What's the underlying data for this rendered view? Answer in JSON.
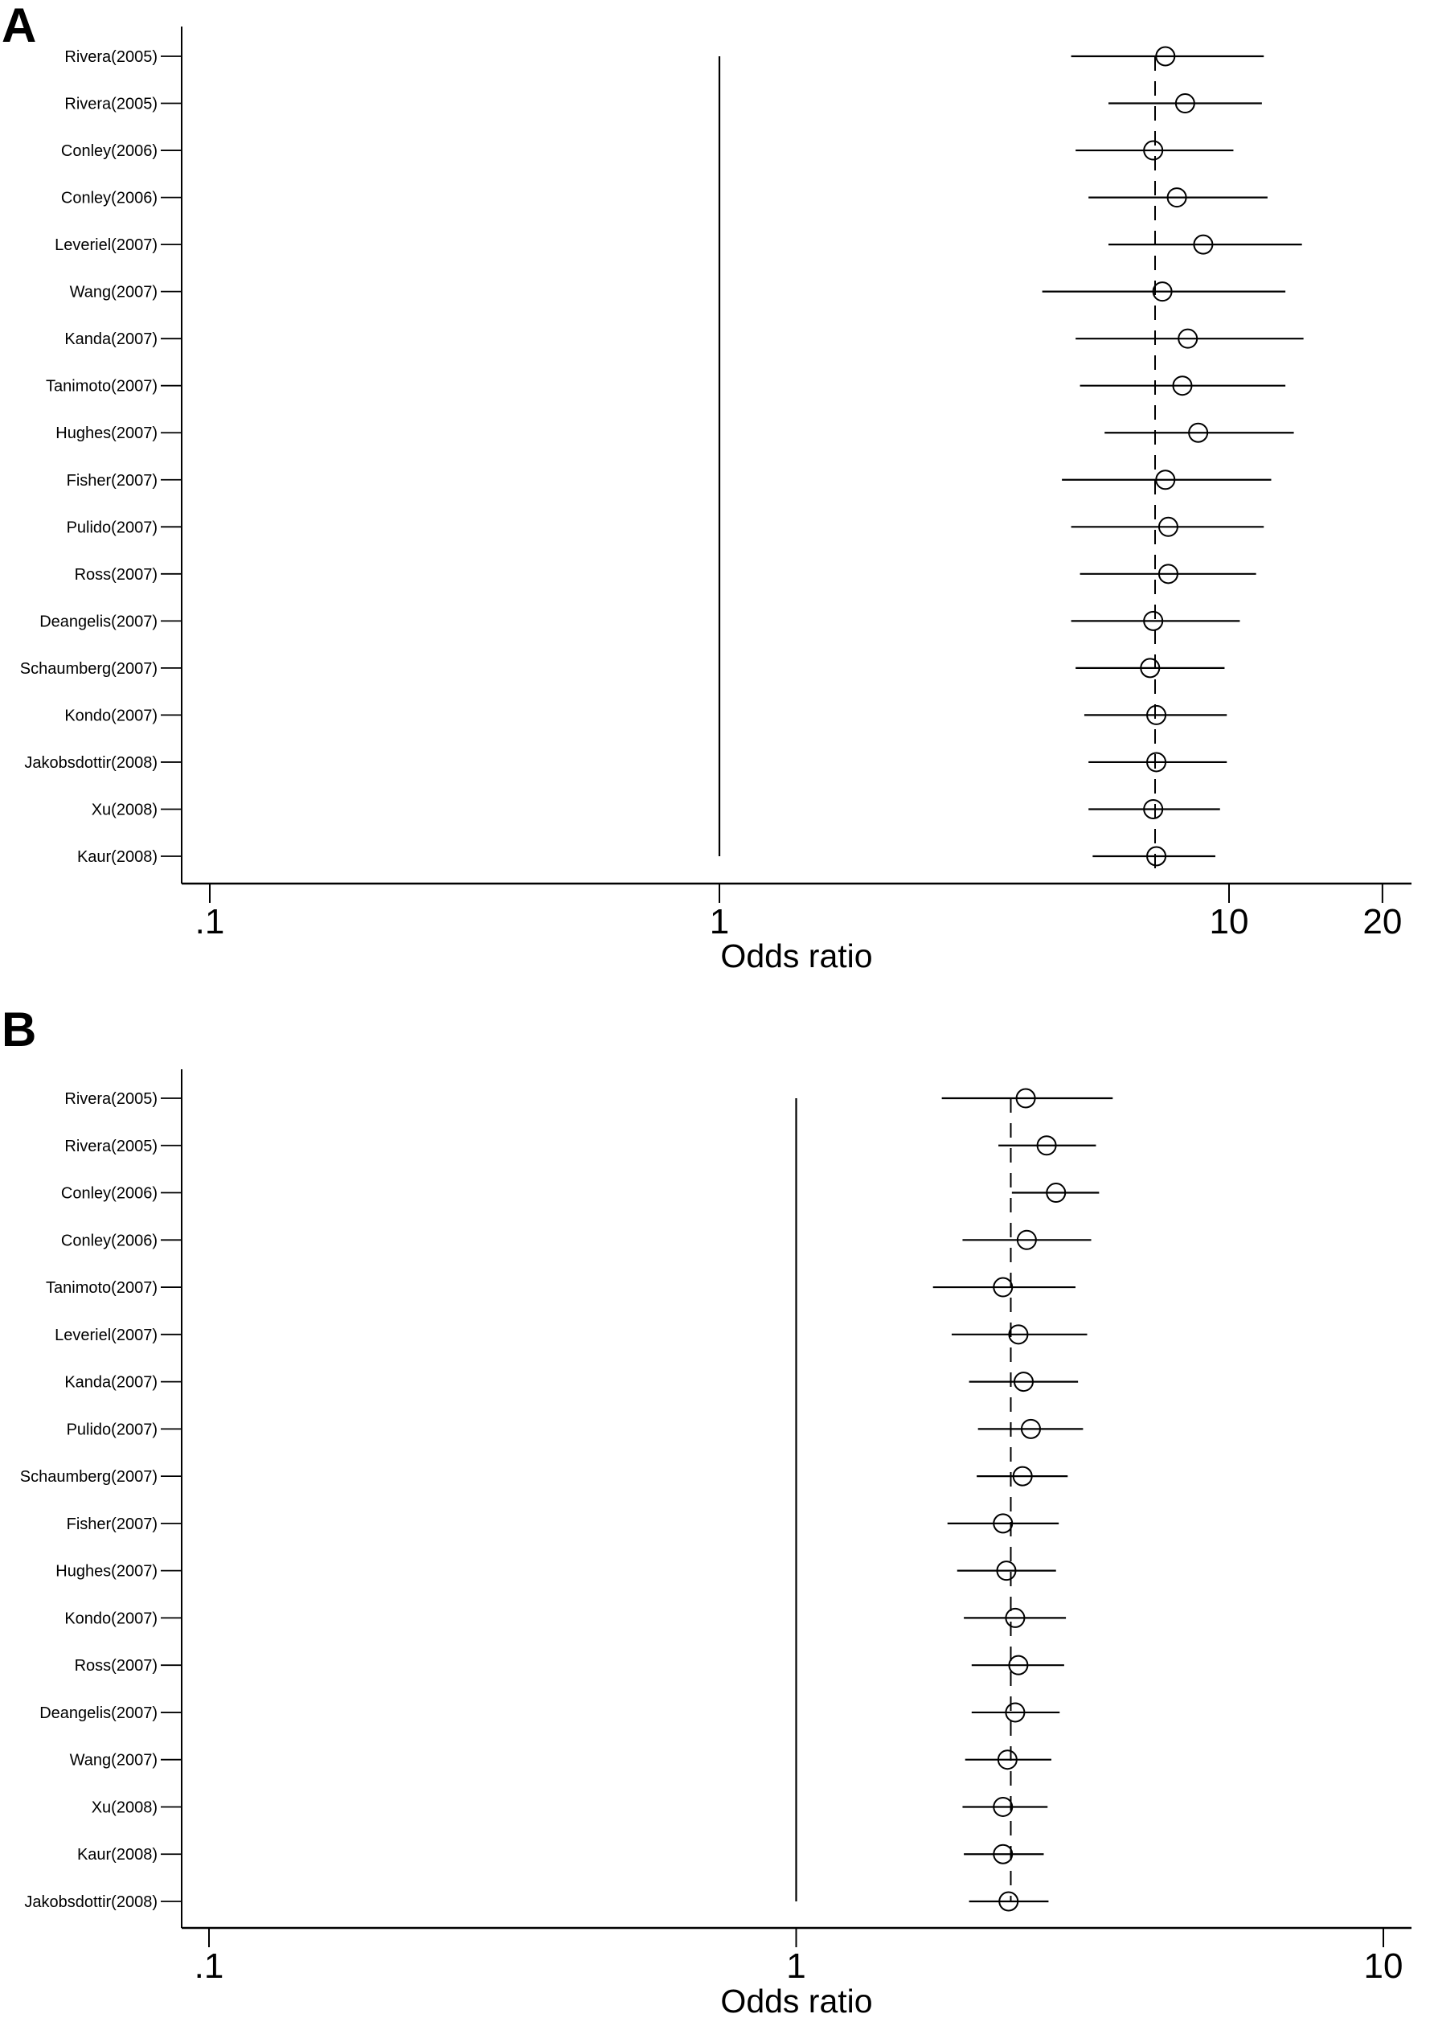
{
  "figure": {
    "background": "#ffffff",
    "foreground": "#000000"
  },
  "chart_data": [
    {
      "type": "scatter",
      "chart_kind": "forest-plot",
      "panel": "A",
      "title": "A",
      "xlabel": "Odds ratio",
      "x_scale": "log",
      "grid": false,
      "legend": false,
      "xlim": [
        0.088,
        22.8
      ],
      "x_ticks": [
        {
          "label": ".1",
          "value": 0.1
        },
        {
          "label": "1",
          "value": 1
        },
        {
          "label": "10",
          "value": 10
        },
        {
          "label": "20",
          "value": 20
        }
      ],
      "reference_line_or": 1,
      "pooled_dashed_line_or": 7.16,
      "studies": [
        {
          "label": "Rivera(2005)",
          "or": 7.5,
          "ci_low": 4.9,
          "ci_high": 11.7
        },
        {
          "label": "Rivera(2005)",
          "or": 8.2,
          "ci_low": 5.8,
          "ci_high": 11.6
        },
        {
          "label": "Conley(2006)",
          "or": 7.1,
          "ci_low": 5.0,
          "ci_high": 10.2
        },
        {
          "label": "Conley(2006)",
          "or": 7.9,
          "ci_low": 5.3,
          "ci_high": 11.9
        },
        {
          "label": "Leveriel(2007)",
          "or": 8.9,
          "ci_low": 5.8,
          "ci_high": 13.9
        },
        {
          "label": "Wang(2007)",
          "or": 7.4,
          "ci_low": 4.3,
          "ci_high": 12.9
        },
        {
          "label": "Kanda(2007)",
          "or": 8.3,
          "ci_low": 5.0,
          "ci_high": 14.0
        },
        {
          "label": "Tanimoto(2007)",
          "or": 8.1,
          "ci_low": 5.1,
          "ci_high": 12.9
        },
        {
          "label": "Hughes(2007)",
          "or": 8.7,
          "ci_low": 5.7,
          "ci_high": 13.4
        },
        {
          "label": "Fisher(2007)",
          "or": 7.5,
          "ci_low": 4.7,
          "ci_high": 12.1
        },
        {
          "label": "Pulido(2007)",
          "or": 7.6,
          "ci_low": 4.9,
          "ci_high": 11.7
        },
        {
          "label": "Ross(2007)",
          "or": 7.6,
          "ci_low": 5.1,
          "ci_high": 11.3
        },
        {
          "label": "Deangelis(2007)",
          "or": 7.1,
          "ci_low": 4.9,
          "ci_high": 10.5
        },
        {
          "label": "Schaumberg(2007)",
          "or": 7.0,
          "ci_low": 5.0,
          "ci_high": 9.8
        },
        {
          "label": "Kondo(2007)",
          "or": 7.2,
          "ci_low": 5.2,
          "ci_high": 9.9
        },
        {
          "label": "Jakobsdottir(2008)",
          "or": 7.2,
          "ci_low": 5.3,
          "ci_high": 9.9
        },
        {
          "label": "Xu(2008)",
          "or": 7.1,
          "ci_low": 5.3,
          "ci_high": 9.6
        },
        {
          "label": "Kaur(2008)",
          "or": 7.2,
          "ci_low": 5.4,
          "ci_high": 9.4
        }
      ]
    },
    {
      "type": "scatter",
      "chart_kind": "forest-plot",
      "panel": "B",
      "title": "B",
      "xlabel": "Odds ratio",
      "x_scale": "log",
      "grid": false,
      "legend": false,
      "xlim": [
        0.09,
        11.1
      ],
      "x_ticks": [
        {
          "label": ".1",
          "value": 0.1
        },
        {
          "label": "1",
          "value": 1
        },
        {
          "label": "10",
          "value": 10
        }
      ],
      "reference_line_or": 1,
      "pooled_dashed_line_or": 2.32,
      "studies": [
        {
          "label": "Rivera(2005)",
          "or": 2.46,
          "ci_low": 1.77,
          "ci_high": 3.46
        },
        {
          "label": "Rivera(2005)",
          "or": 2.67,
          "ci_low": 2.21,
          "ci_high": 3.24
        },
        {
          "label": "Conley(2006)",
          "or": 2.77,
          "ci_low": 2.33,
          "ci_high": 3.28
        },
        {
          "label": "Conley(2006)",
          "or": 2.47,
          "ci_low": 1.92,
          "ci_high": 3.18
        },
        {
          "label": "Tanimoto(2007)",
          "or": 2.25,
          "ci_low": 1.71,
          "ci_high": 2.99
        },
        {
          "label": "Leveriel(2007)",
          "or": 2.39,
          "ci_low": 1.84,
          "ci_high": 3.13
        },
        {
          "label": "Kanda(2007)",
          "or": 2.44,
          "ci_low": 1.97,
          "ci_high": 3.02
        },
        {
          "label": "Pulido(2007)",
          "or": 2.51,
          "ci_low": 2.04,
          "ci_high": 3.08
        },
        {
          "label": "Schaumberg(2007)",
          "or": 2.43,
          "ci_low": 2.03,
          "ci_high": 2.9
        },
        {
          "label": "Fisher(2007)",
          "or": 2.25,
          "ci_low": 1.81,
          "ci_high": 2.8
        },
        {
          "label": "Hughes(2007)",
          "or": 2.28,
          "ci_low": 1.88,
          "ci_high": 2.77
        },
        {
          "label": "Kondo(2007)",
          "or": 2.36,
          "ci_low": 1.93,
          "ci_high": 2.88
        },
        {
          "label": "Ross(2007)",
          "or": 2.39,
          "ci_low": 1.99,
          "ci_high": 2.86
        },
        {
          "label": "Deangelis(2007)",
          "or": 2.36,
          "ci_low": 1.99,
          "ci_high": 2.81
        },
        {
          "label": "Wang(2007)",
          "or": 2.29,
          "ci_low": 1.94,
          "ci_high": 2.72
        },
        {
          "label": "Xu(2008)",
          "or": 2.25,
          "ci_low": 1.92,
          "ci_high": 2.68
        },
        {
          "label": "Kaur(2008)",
          "or": 2.25,
          "ci_low": 1.93,
          "ci_high": 2.64
        },
        {
          "label": "Jakobsdottir(2008)",
          "or": 2.3,
          "ci_low": 1.97,
          "ci_high": 2.69
        }
      ]
    }
  ]
}
